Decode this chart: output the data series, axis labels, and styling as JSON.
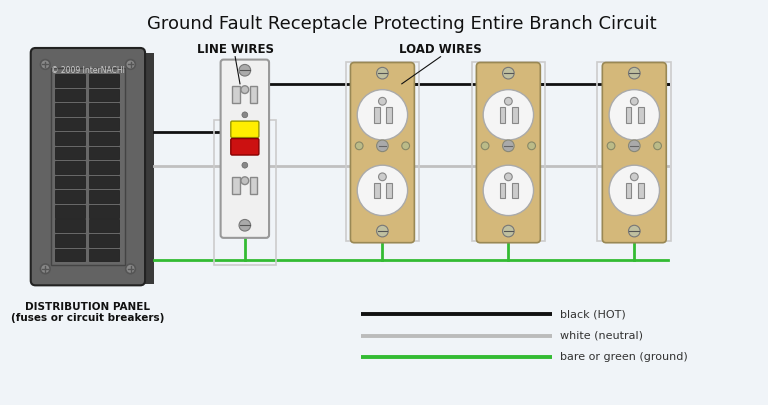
{
  "title": "Ground Fault Receptacle Protecting Entire Branch Circuit",
  "title_fontsize": 13,
  "bg_color": "#f0f4f8",
  "label_line_wires": "LINE WIRES",
  "label_load_wires": "LOAD WIRES",
  "label_panel": "DISTRIBUTION PANEL\n(fuses or circuit breakers)",
  "label_copyright": "© 2009 InterNACHI",
  "legend_items": [
    {
      "label": "black (HOT)",
      "color": "#111111"
    },
    {
      "label": "white (neutral)",
      "color": "#bbbbbb"
    },
    {
      "label": "bare or green (ground)",
      "color": "#33bb33"
    }
  ],
  "wire_black": "#111111",
  "wire_white": "#c0c0c0",
  "wire_green": "#33bb33",
  "panel_body": "#636363",
  "panel_face": "#777777",
  "panel_shadow": "#444444",
  "outlet_tan": "#d4b87a",
  "outlet_white": "#f5f5f5",
  "outlet_gray": "#aaaaaa",
  "gfci_white": "#f0f0f0",
  "gfci_yellow": "#ffee00",
  "gfci_red": "#cc1111",
  "screw_color": "#aaaaaa",
  "breaker_color": "#2a2a2a"
}
